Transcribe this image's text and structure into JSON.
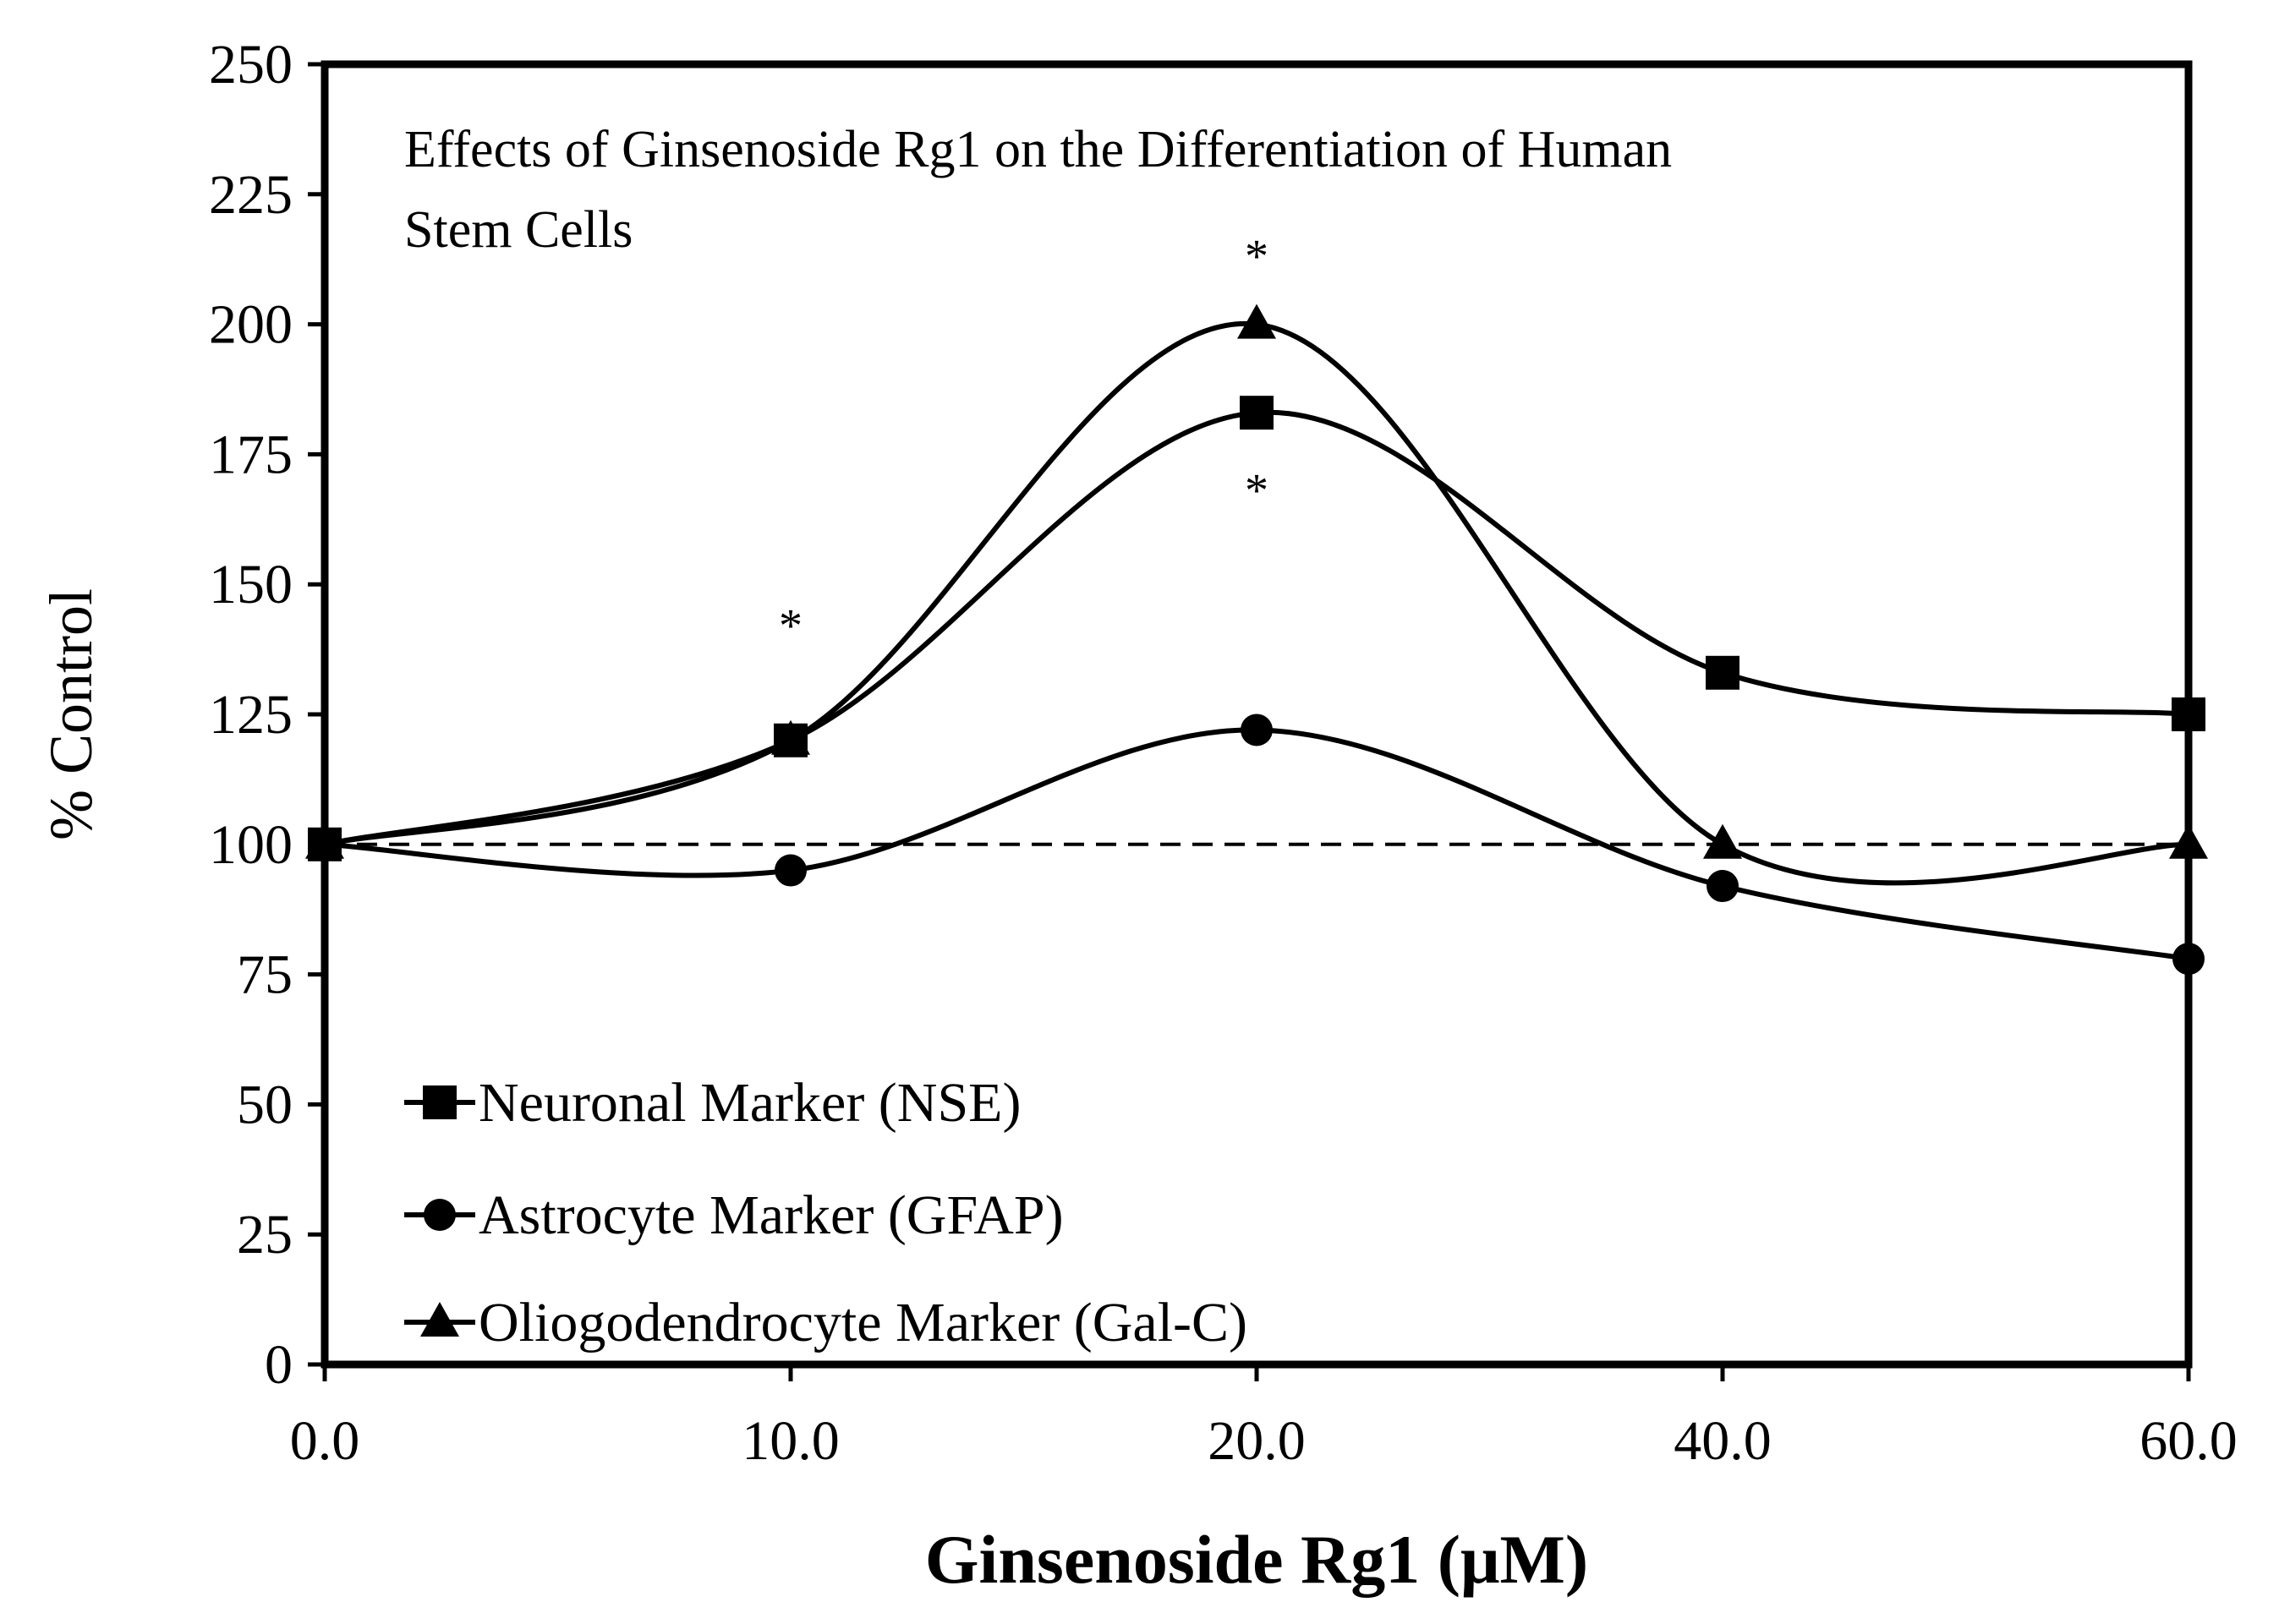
{
  "chart_data": {
    "type": "line",
    "title": "Effects of Ginsenoside Rg1 on the Differentiation of Human Stem Cells",
    "title_lines": [
      "Effects of Ginsenoside Rg1 on the Differentiation of Human",
      "Stem Cells"
    ],
    "xlabel": "Ginsenoside Rg1 (μM)",
    "ylabel": "% Control",
    "categories": [
      "0.0",
      "10.0",
      "20.0",
      "40.0",
      "60.0"
    ],
    "ylim": [
      0,
      250
    ],
    "yticks": [
      0,
      25,
      50,
      75,
      100,
      125,
      150,
      175,
      200,
      225,
      250
    ],
    "smoothed": true,
    "grid": false,
    "legend_position": "bottom-left",
    "reference_line": {
      "y": 100,
      "style": "dashed"
    },
    "series": [
      {
        "name": "Neuronal Marker (NSE)",
        "marker": "square",
        "values": [
          100,
          120,
          183,
          133,
          125
        ]
      },
      {
        "name": "Astrocyte Marker (GFAP)",
        "marker": "circle",
        "values": [
          100,
          95,
          122,
          92,
          78
        ]
      },
      {
        "name": "Oliogodendrocyte Marker (Gal-C)",
        "marker": "triangle",
        "values": [
          100,
          120,
          200,
          100,
          100
        ]
      }
    ],
    "annotations": [
      {
        "text": "*",
        "category_index": 1,
        "y": 142
      },
      {
        "text": "*",
        "category_index": 2,
        "y": 213
      },
      {
        "text": "*",
        "category_index": 2,
        "y": 168
      }
    ]
  }
}
